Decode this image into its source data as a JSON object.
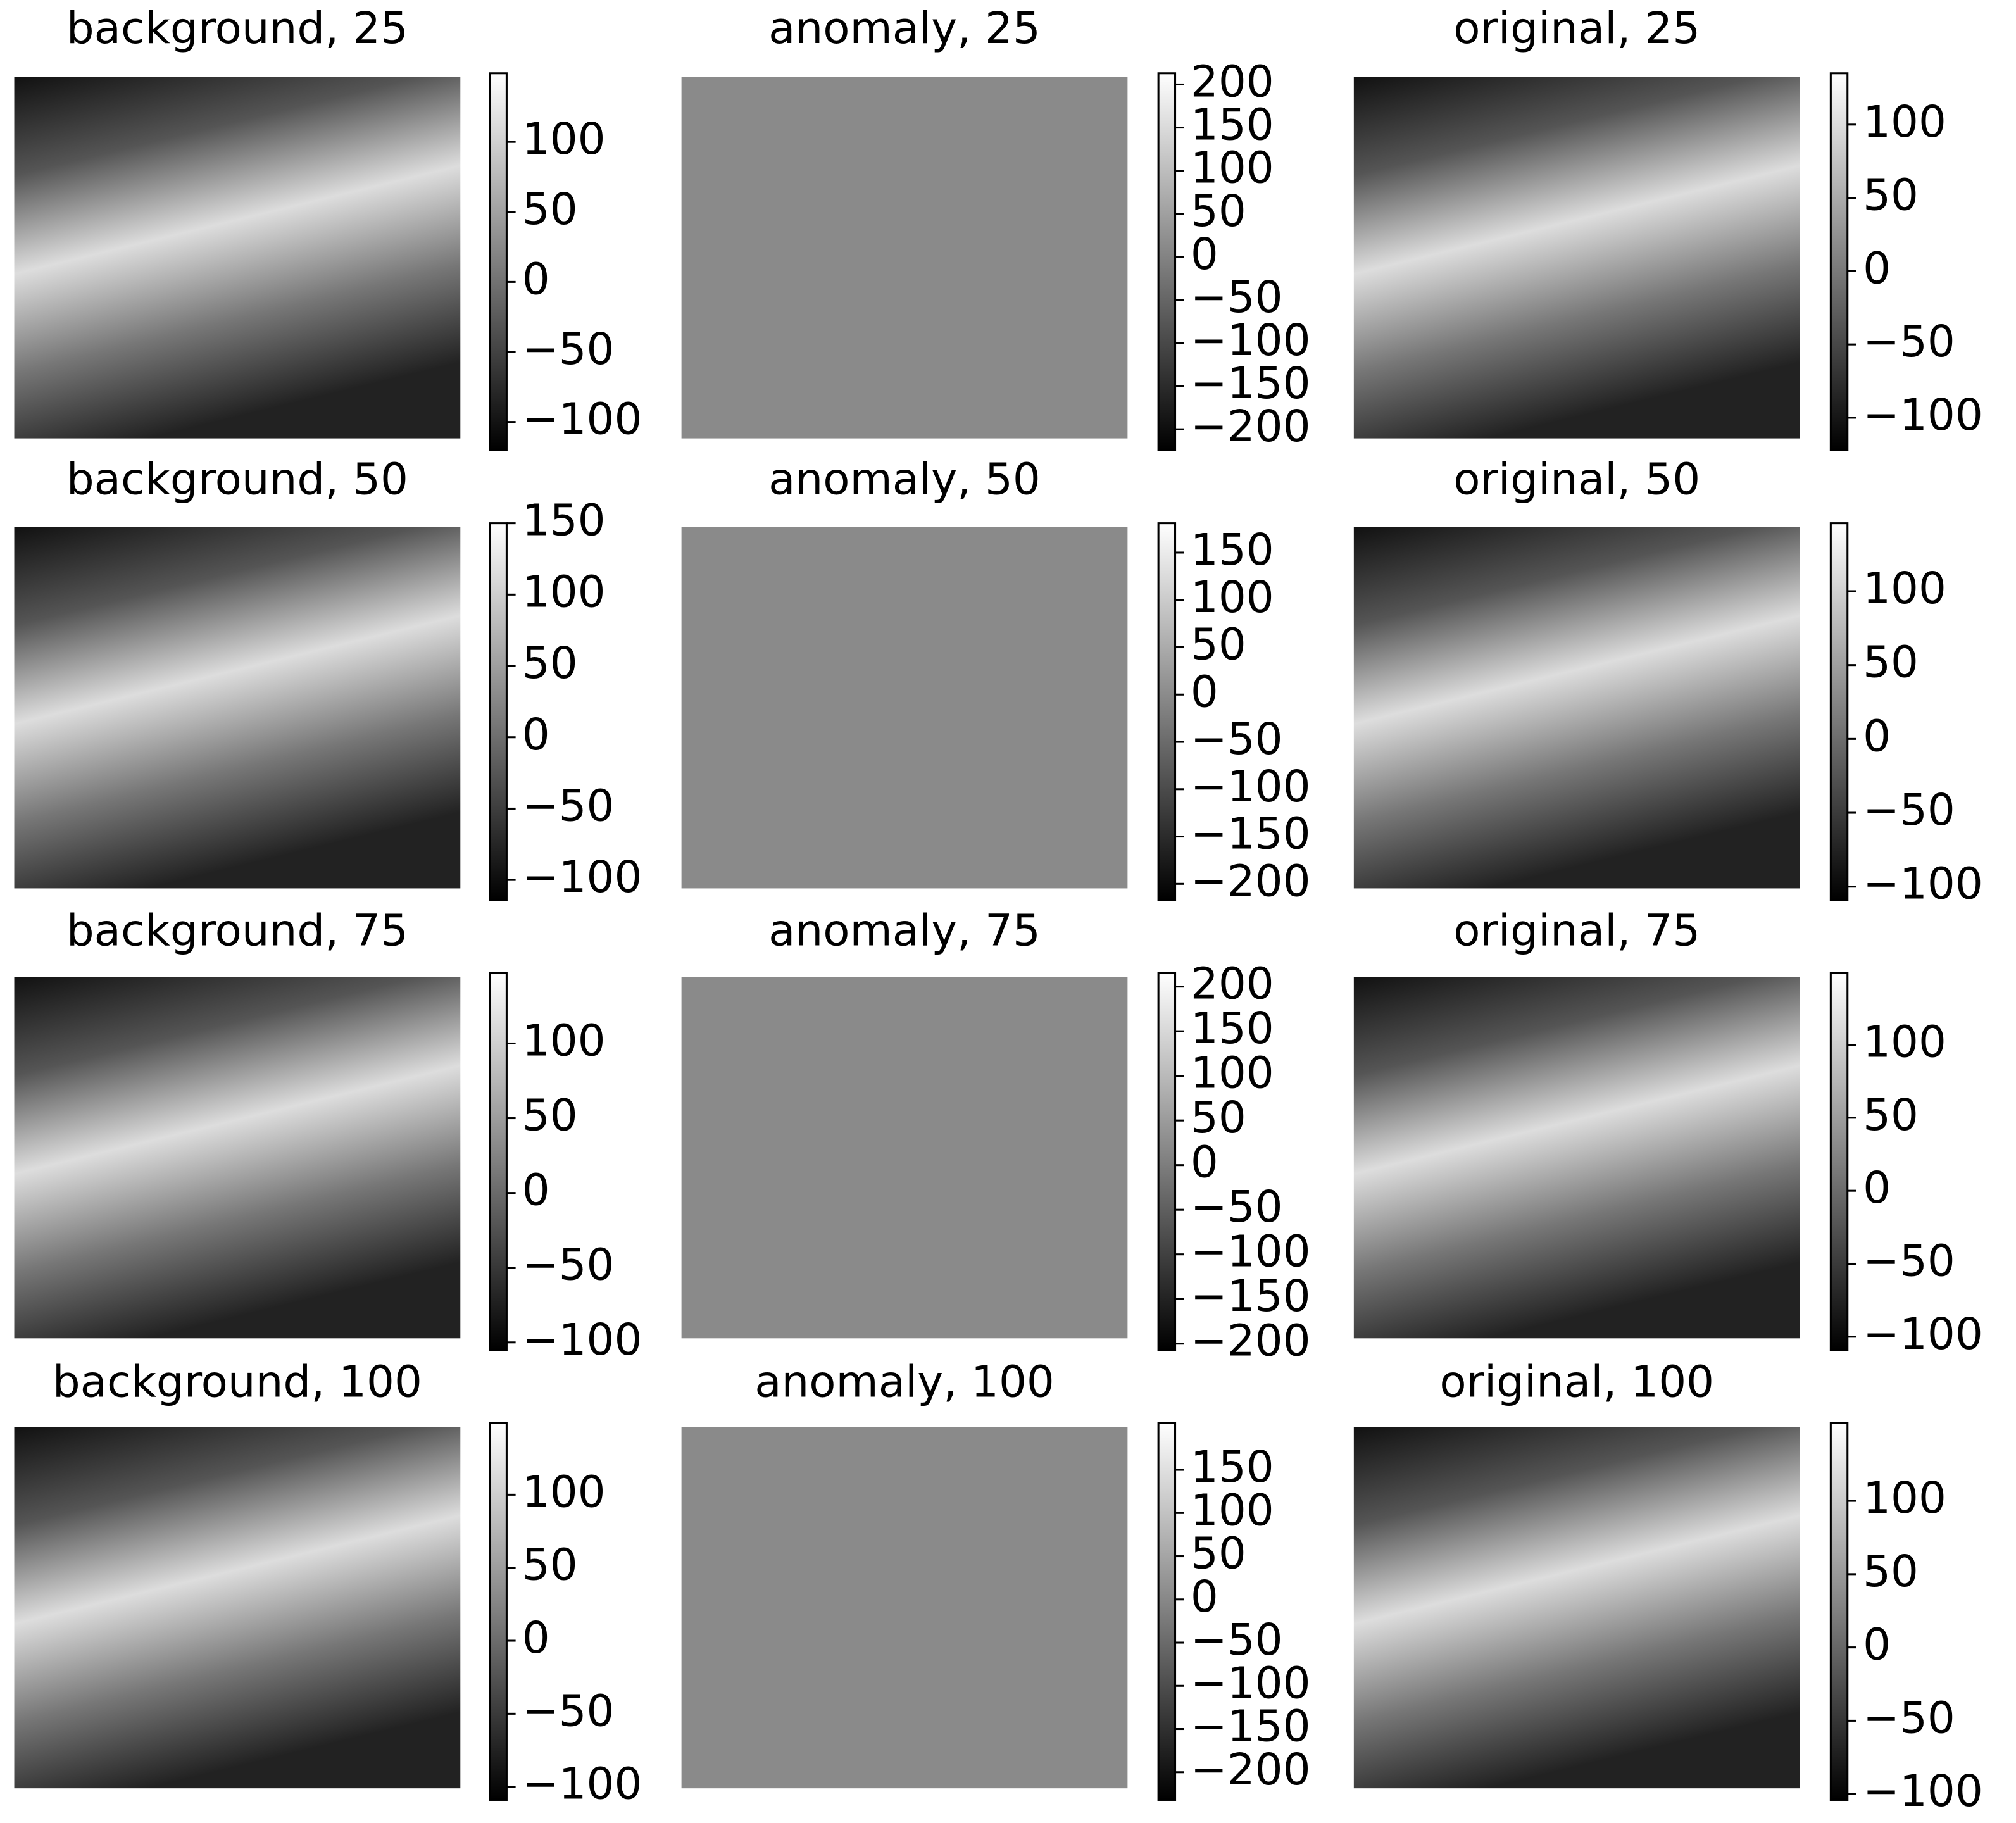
{
  "chart_data": [
    {
      "type": "image",
      "title": "background, 25",
      "cmap": "gray",
      "clim": [
        -120,
        149
      ],
      "cticks": [
        {
          "value": -100,
          "label": "−100"
        },
        {
          "value": -50,
          "label": "−50"
        },
        0,
        50,
        100
      ]
    },
    {
      "type": "image",
      "title": "anomaly, 25",
      "cmap": "gray",
      "clim": [
        -224,
        213
      ],
      "cticks": [
        {
          "value": -200,
          "label": "−200"
        },
        {
          "value": -150,
          "label": "−150"
        },
        {
          "value": -100,
          "label": "−100"
        },
        {
          "value": -50,
          "label": "−50"
        },
        0,
        50,
        100,
        150,
        200
      ]
    },
    {
      "type": "image",
      "title": "original, 25",
      "cmap": "gray",
      "clim": [
        -122,
        135
      ],
      "cticks": [
        {
          "value": -100,
          "label": "−100"
        },
        {
          "value": -50,
          "label": "−50"
        },
        0,
        50,
        100
      ]
    },
    {
      "type": "image",
      "title": "background, 50",
      "cmap": "gray",
      "clim": [
        -114,
        150
      ],
      "cticks": [
        {
          "value": -100,
          "label": "−100"
        },
        {
          "value": -50,
          "label": "−50"
        },
        0,
        50,
        100,
        150
      ]
    },
    {
      "type": "image",
      "title": "anomaly, 50",
      "cmap": "gray",
      "clim": [
        -217,
        181
      ],
      "cticks": [
        {
          "value": -200,
          "label": "−200"
        },
        {
          "value": -150,
          "label": "−150"
        },
        {
          "value": -100,
          "label": "−100"
        },
        {
          "value": -50,
          "label": "−50"
        },
        0,
        50,
        100,
        150
      ]
    },
    {
      "type": "image",
      "title": "original, 50",
      "cmap": "gray",
      "clim": [
        -109,
        146
      ],
      "cticks": [
        {
          "value": -100,
          "label": "−100"
        },
        {
          "value": -50,
          "label": "−50"
        },
        0,
        50,
        100
      ]
    },
    {
      "type": "image",
      "title": "background, 75",
      "cmap": "gray",
      "clim": [
        -105,
        147
      ],
      "cticks": [
        {
          "value": -100,
          "label": "−100"
        },
        {
          "value": -50,
          "label": "−50"
        },
        0,
        50,
        100
      ]
    },
    {
      "type": "image",
      "title": "anomaly, 75",
      "cmap": "gray",
      "clim": [
        -207,
        215
      ],
      "cticks": [
        {
          "value": -200,
          "label": "−200"
        },
        {
          "value": -150,
          "label": "−150"
        },
        {
          "value": -100,
          "label": "−100"
        },
        {
          "value": -50,
          "label": "−50"
        },
        0,
        50,
        100,
        150,
        200
      ]
    },
    {
      "type": "image",
      "title": "original, 75",
      "cmap": "gray",
      "clim": [
        -109,
        149
      ],
      "cticks": [
        {
          "value": -100,
          "label": "−100"
        },
        {
          "value": -50,
          "label": "−50"
        },
        0,
        50,
        100
      ]
    },
    {
      "type": "image",
      "title": "background, 100",
      "cmap": "gray",
      "clim": [
        -109,
        149
      ],
      "cticks": [
        {
          "value": -100,
          "label": "−100"
        },
        {
          "value": -50,
          "label": "−50"
        },
        0,
        50,
        100
      ]
    },
    {
      "type": "image",
      "title": "anomaly, 100",
      "cmap": "gray",
      "clim": [
        -232,
        204
      ],
      "cticks": [
        {
          "value": -200,
          "label": "−200"
        },
        {
          "value": -150,
          "label": "−150"
        },
        {
          "value": -100,
          "label": "−100"
        },
        {
          "value": -50,
          "label": "−50"
        },
        0,
        50,
        100,
        150
      ]
    },
    {
      "type": "image",
      "title": "original, 100",
      "cmap": "gray",
      "clim": [
        -104,
        153
      ],
      "cticks": [
        {
          "value": -100,
          "label": "−100"
        },
        {
          "value": -50,
          "label": "−50"
        },
        0,
        50,
        100
      ]
    }
  ]
}
